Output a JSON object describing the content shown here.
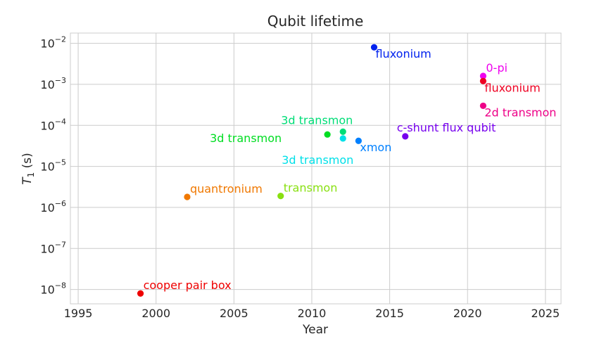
{
  "chart_data": {
    "type": "scatter",
    "title": "Qubit lifetime",
    "xlabel": "Year",
    "ylabel": "T1 (s)",
    "ylabel_main": "T",
    "ylabel_sub": "1",
    "ylabel_unit": " (s)",
    "x_scale": "linear",
    "y_scale": "log",
    "xlim": [
      1994.5,
      2026
    ],
    "ylim_exp": [
      -8.35,
      -1.75
    ],
    "x_ticks": [
      1995,
      2000,
      2005,
      2010,
      2015,
      2020,
      2025
    ],
    "y_ticks": [
      {
        "value": 1e-08,
        "base": "10",
        "exp": "−8"
      },
      {
        "value": 1e-07,
        "base": "10",
        "exp": "−7"
      },
      {
        "value": 1e-06,
        "base": "10",
        "exp": "−6"
      },
      {
        "value": 1e-05,
        "base": "10",
        "exp": "−5"
      },
      {
        "value": 0.0001,
        "base": "10",
        "exp": "−4"
      },
      {
        "value": 0.001,
        "base": "10",
        "exp": "−3"
      },
      {
        "value": 0.01,
        "base": "10",
        "exp": "−2"
      }
    ],
    "grid": true,
    "points": [
      {
        "label": "cooper pair box",
        "x": 1999,
        "y": 8e-09,
        "color": "#ee0000",
        "anchor": "above-right"
      },
      {
        "label": "quantronium",
        "x": 2002,
        "y": 1.8e-06,
        "color": "#f07800",
        "anchor": "above-right"
      },
      {
        "label": "transmon",
        "x": 2008,
        "y": 1.9e-06,
        "color": "#88e010",
        "anchor": "above-right"
      },
      {
        "label": "3d transmon",
        "x": 2011,
        "y": 6e-05,
        "color": "#00dd22",
        "anchor": "left"
      },
      {
        "label": "3d transmon",
        "x": 2012,
        "y": 7e-05,
        "color": "#00dd77",
        "anchor": "above-left"
      },
      {
        "label": "3d transmon",
        "x": 2012,
        "y": 4.8e-05,
        "color": "#00e0e8",
        "anchor": "below-left"
      },
      {
        "label": "xmon",
        "x": 2013,
        "y": 4.2e-05,
        "color": "#0080ff",
        "anchor": "below-right"
      },
      {
        "label": "fluxonium",
        "x": 2014,
        "y": 0.008,
        "color": "#0022ee",
        "anchor": "below-right"
      },
      {
        "label": "c-shunt flux qubit",
        "x": 2016,
        "y": 5.4e-05,
        "color": "#7700ee",
        "anchor": "above-left"
      },
      {
        "label": "0-pi",
        "x": 2021,
        "y": 0.0016,
        "color": "#ee00ee",
        "anchor": "above-right"
      },
      {
        "label": "fluxonium",
        "x": 2021,
        "y": 0.0012,
        "color": "#ee0022",
        "anchor": "below-right"
      },
      {
        "label": "2d transmon",
        "x": 2021,
        "y": 0.0003,
        "color": "#ee0088",
        "anchor": "below-right"
      }
    ]
  }
}
